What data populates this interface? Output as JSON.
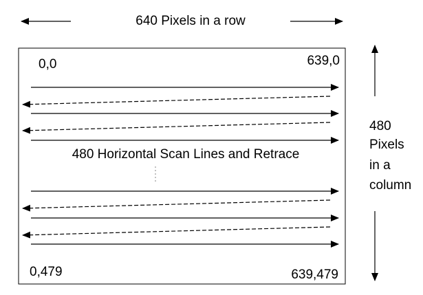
{
  "header": {
    "row_label": "640 Pixels in a row"
  },
  "corners": {
    "top_left": "0,0",
    "top_right": "639,0",
    "bottom_left": "0,479",
    "bottom_right": "639,479"
  },
  "center_label": "480 Horizontal Scan Lines and Retrace",
  "column_label": {
    "line1": "480",
    "line2": "Pixels",
    "line3": "in a",
    "line4": "column"
  },
  "colors": {
    "stroke": "#000000",
    "background": "#ffffff"
  }
}
